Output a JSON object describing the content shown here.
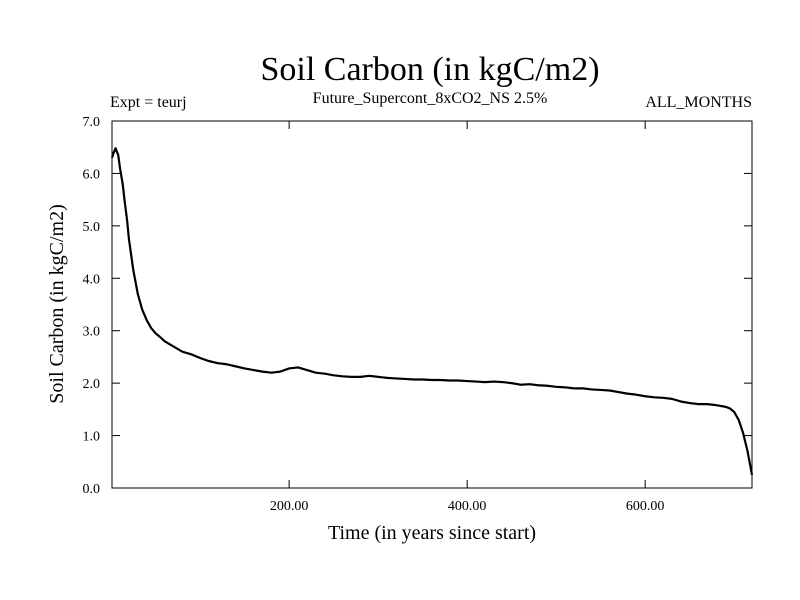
{
  "chart_data": {
    "type": "line",
    "title": "Soil Carbon (in kgC/m2)",
    "subtitle_left": "Expt = teurj",
    "subtitle_center": "Future_Supercont_8xCO2_NS 2.5%",
    "subtitle_right": "ALL_MONTHS",
    "xlabel": "Time (in years since start)",
    "ylabel": "Soil Carbon (in kgC/m2)",
    "xlim": [
      1,
      720
    ],
    "ylim": [
      0,
      7.0
    ],
    "x_ticks": [
      200,
      400,
      600
    ],
    "x_tick_labels": [
      "200.00",
      "400.00",
      "600.00"
    ],
    "y_ticks": [
      0,
      1,
      2,
      3,
      4,
      5,
      6,
      7
    ],
    "y_tick_labels": [
      "0.0",
      "1.0",
      "2.0",
      "3.0",
      "4.0",
      "5.0",
      "6.0",
      "7.0"
    ],
    "grid": false,
    "line_color": "#000000",
    "series": [
      {
        "x": [
          1,
          3,
          5,
          8,
          10,
          13,
          15,
          18,
          20,
          25,
          30,
          35,
          40,
          45,
          50,
          55,
          60,
          65,
          70,
          80,
          90,
          100,
          110,
          120,
          130,
          140,
          150,
          160,
          170,
          180,
          190,
          200,
          210,
          220,
          230,
          240,
          250,
          260,
          270,
          280,
          290,
          300,
          310,
          320,
          330,
          340,
          350,
          360,
          370,
          380,
          390,
          400,
          410,
          420,
          430,
          440,
          450,
          460,
          470,
          480,
          490,
          500,
          510,
          520,
          530,
          540,
          550,
          560,
          570,
          580,
          590,
          600,
          610,
          620,
          630,
          640,
          650,
          660,
          670,
          680,
          690,
          695,
          700,
          705,
          710,
          715,
          720
        ],
        "y": [
          6.3,
          6.4,
          6.48,
          6.35,
          6.1,
          5.8,
          5.5,
          5.1,
          4.75,
          4.15,
          3.7,
          3.4,
          3.2,
          3.05,
          2.95,
          2.88,
          2.8,
          2.75,
          2.7,
          2.6,
          2.55,
          2.48,
          2.42,
          2.38,
          2.36,
          2.32,
          2.28,
          2.25,
          2.22,
          2.2,
          2.22,
          2.28,
          2.3,
          2.25,
          2.2,
          2.18,
          2.15,
          2.13,
          2.12,
          2.12,
          2.14,
          2.12,
          2.1,
          2.09,
          2.08,
          2.07,
          2.07,
          2.06,
          2.06,
          2.05,
          2.05,
          2.04,
          2.03,
          2.02,
          2.03,
          2.02,
          2.0,
          1.97,
          1.98,
          1.96,
          1.95,
          1.93,
          1.92,
          1.9,
          1.9,
          1.88,
          1.87,
          1.86,
          1.83,
          1.8,
          1.78,
          1.75,
          1.73,
          1.72,
          1.7,
          1.65,
          1.62,
          1.6,
          1.6,
          1.58,
          1.55,
          1.52,
          1.45,
          1.3,
          1.05,
          0.7,
          0.25
        ]
      }
    ]
  }
}
